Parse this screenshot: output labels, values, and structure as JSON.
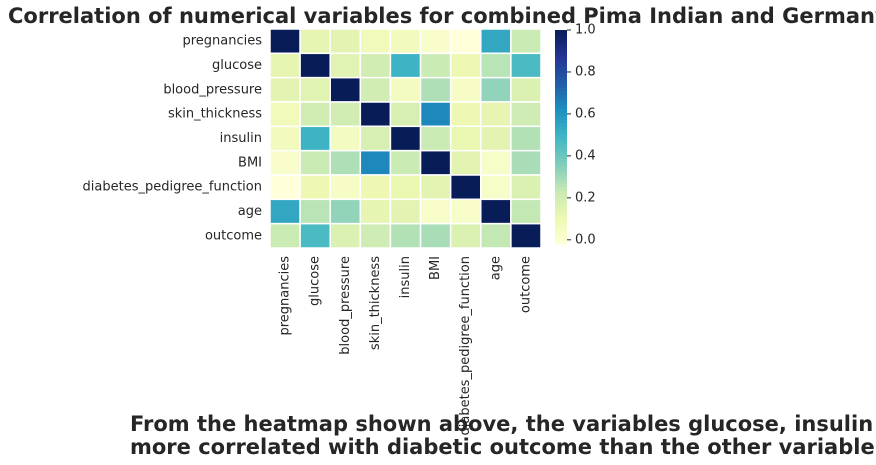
{
  "chart_data": {
    "type": "heatmap",
    "title": "Correlation of numerical variables for combined Pima Indian and Germany datasets",
    "rows": [
      "pregnancies",
      "glucose",
      "blood_pressure",
      "skin_thickness",
      "insulin",
      "BMI",
      "diabetes_pedigree_function",
      "age",
      "outcome"
    ],
    "columns": [
      "pregnancies",
      "glucose",
      "blood_pressure",
      "skin_thickness",
      "insulin",
      "BMI",
      "diabetes_pedigree_function",
      "age",
      "outcome"
    ],
    "z": [
      [
        1,
        0.13,
        0.14,
        0.08,
        0.07,
        0.02,
        -0.02,
        0.54,
        0.22
      ],
      [
        0.13,
        1,
        0.15,
        0.2,
        0.5,
        0.22,
        0.1,
        0.26,
        0.47
      ],
      [
        0.14,
        0.15,
        1,
        0.2,
        0.06,
        0.28,
        0.04,
        0.33,
        0.17
      ],
      [
        0.08,
        0.2,
        0.2,
        1,
        0.18,
        0.64,
        0.1,
        0.13,
        0.21
      ],
      [
        0.07,
        0.5,
        0.06,
        0.18,
        1,
        0.22,
        0.12,
        0.14,
        0.27
      ],
      [
        0.02,
        0.22,
        0.28,
        0.64,
        0.22,
        1,
        0.14,
        0.03,
        0.29
      ],
      [
        -0.02,
        0.1,
        0.04,
        0.1,
        0.12,
        0.14,
        1,
        0.03,
        0.17
      ],
      [
        0.54,
        0.26,
        0.33,
        0.13,
        0.14,
        0.03,
        0.03,
        1,
        0.24
      ],
      [
        0.22,
        0.47,
        0.17,
        0.21,
        0.27,
        0.29,
        0.17,
        0.24,
        1
      ]
    ],
    "zlim": [
      -0.02,
      1
    ],
    "zticks": [
      {
        "value": 0,
        "label": "0.0"
      },
      0.2,
      0.4,
      0.6,
      0.8,
      {
        "value": 1,
        "label": "1.0"
      }
    ],
    "colormap": [
      "#ffffd9",
      "#edf8b1",
      "#c7e9b4",
      "#7fcdbb",
      "#41b6c4",
      "#1d91c0",
      "#225ea8",
      "#253494",
      "#081d58"
    ],
    "caption": [
      "From the heatmap shown above, the variables glucose, insulin and BMI are",
      "more correlated with diabetic outcome than the other variables in the dataset."
    ]
  }
}
